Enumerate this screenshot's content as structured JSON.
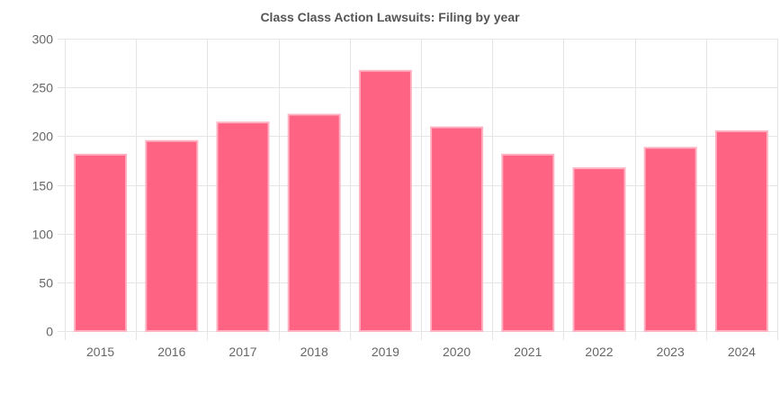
{
  "chart_data": {
    "type": "bar",
    "title": "Class Class Action Lawsuits: Filing by year",
    "categories": [
      "2015",
      "2016",
      "2017",
      "2018",
      "2019",
      "2020",
      "2021",
      "2022",
      "2023",
      "2024"
    ],
    "values": [
      181,
      195,
      214,
      222,
      267,
      209,
      181,
      167,
      188,
      205
    ],
    "ylim": [
      0,
      300
    ],
    "yticks": [
      0,
      50,
      100,
      150,
      200,
      250,
      300
    ],
    "xlabel": "",
    "ylabel": "",
    "grid": true,
    "legend": "none",
    "colors": {
      "bar_fill": "#ff6384",
      "bar_border": "#ffb1c1",
      "grid": "#e5e5e5",
      "tick_text": "#666666",
      "title_text": "#555555"
    }
  }
}
